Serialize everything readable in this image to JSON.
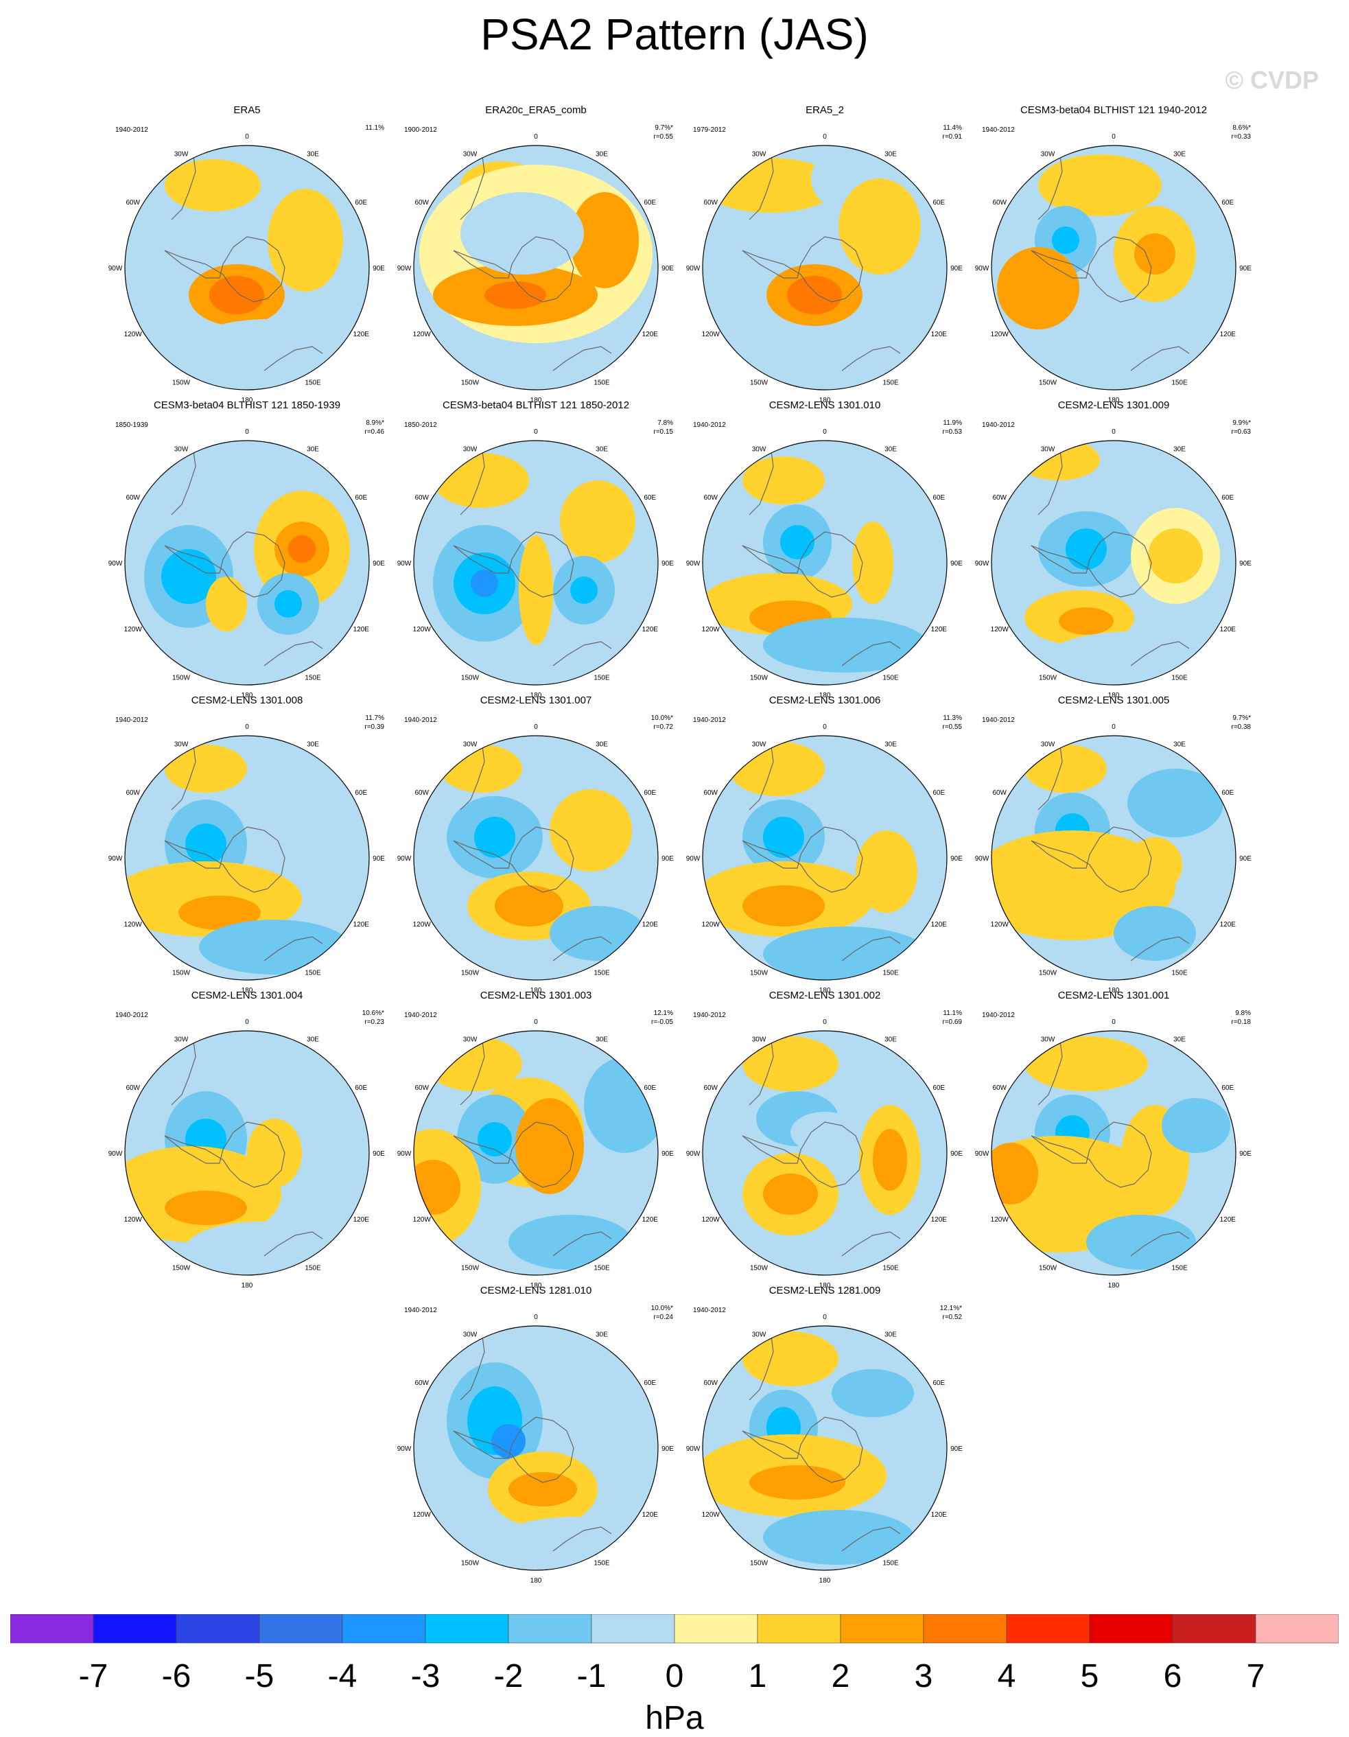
{
  "title": "PSA2 Pattern (JAS)",
  "watermark": "© CVDP",
  "lon_labels": [
    "0",
    "30E",
    "60E",
    "90E",
    "120E",
    "150E",
    "180",
    "150W",
    "120W",
    "90W",
    "60W",
    "30W"
  ],
  "chart_data": {
    "type": "heatmap",
    "title": "PSA2 Pattern (JAS)",
    "units": "hPa",
    "colorbar": {
      "ticks": [
        -7,
        -6,
        -5,
        -4,
        -3,
        -2,
        -1,
        0,
        1,
        2,
        3,
        4,
        5,
        6,
        7
      ],
      "colors": [
        "#8a2be2",
        "#1414ff",
        "#2a45e4",
        "#3273e6",
        "#1e96ff",
        "#00c0ff",
        "#6fc8f0",
        "#b3dcf2",
        "#fff59d",
        "#ffd22e",
        "#ffa000",
        "#ff7800",
        "#ff2d00",
        "#e60000",
        "#c81e1e",
        "#ffb4b4"
      ]
    },
    "panels": [
      {
        "name": "ERA5",
        "years": "1940-2012",
        "pct": "11.1%",
        "r": ""
      },
      {
        "name": "ERA20c_ERA5_comb",
        "years": "1900-2012",
        "pct": "9.7%*",
        "r": "r=0.55"
      },
      {
        "name": "ERA5_2",
        "years": "1979-2012",
        "pct": "11.4%",
        "r": "r=0.91"
      },
      {
        "name": "CESM3-beta04 BLTHIST 121 1940-2012",
        "years": "1940-2012",
        "pct": "8.6%*",
        "r": "r=0.33"
      },
      {
        "name": "CESM3-beta04 BLTHIST 121 1850-1939",
        "years": "1850-1939",
        "pct": "8.9%*",
        "r": "r=0.46"
      },
      {
        "name": "CESM3-beta04 BLTHIST 121 1850-2012",
        "years": "1850-2012",
        "pct": "7.8%",
        "r": "r=0.15"
      },
      {
        "name": "CESM2-LENS 1301.010",
        "years": "1940-2012",
        "pct": "11.9%",
        "r": "r=0.53"
      },
      {
        "name": "CESM2-LENS 1301.009",
        "years": "1940-2012",
        "pct": "9.9%*",
        "r": "r=0.63"
      },
      {
        "name": "CESM2-LENS 1301.008",
        "years": "1940-2012",
        "pct": "11.7%",
        "r": "r=0.39"
      },
      {
        "name": "CESM2-LENS 1301.007",
        "years": "1940-2012",
        "pct": "10.0%*",
        "r": "r=0.72"
      },
      {
        "name": "CESM2-LENS 1301.006",
        "years": "1940-2012",
        "pct": "11.3%",
        "r": "r=0.55"
      },
      {
        "name": "CESM2-LENS 1301.005",
        "years": "1940-2012",
        "pct": "9.7%*",
        "r": "r=0.38"
      },
      {
        "name": "CESM2-LENS 1301.004",
        "years": "1940-2012",
        "pct": "10.6%*",
        "r": "r=0.23"
      },
      {
        "name": "CESM2-LENS 1301.003",
        "years": "1940-2012",
        "pct": "12.1%",
        "r": "r=-0.05"
      },
      {
        "name": "CESM2-LENS 1301.002",
        "years": "1940-2012",
        "pct": "11.1%",
        "r": "r=0.69"
      },
      {
        "name": "CESM2-LENS 1301.001",
        "years": "1940-2012",
        "pct": "9.8%",
        "r": "r=0.18"
      },
      {
        "name": "CESM2-LENS 1281.010",
        "years": "1940-2012",
        "pct": "10.0%*",
        "r": "r=0.24"
      },
      {
        "name": "CESM2-LENS 1281.009",
        "years": "1940-2012",
        "pct": "12.1%*",
        "r": "r=0.52"
      }
    ]
  }
}
